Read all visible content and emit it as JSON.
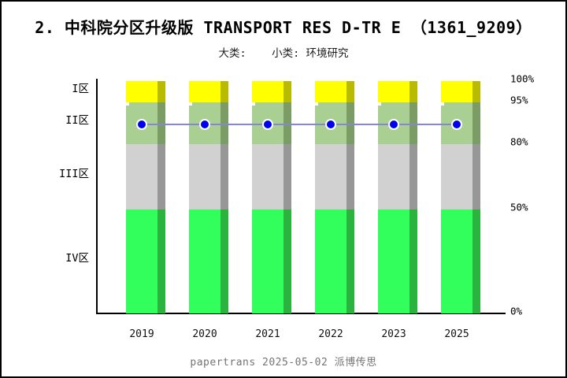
{
  "header": {
    "title": "2. 中科院分区升级版 TRANSPORT RES D-TR E （1361_9209）",
    "subtitle": "大类:    小类: 环境研究"
  },
  "footer": {
    "caption": "papertrans 2025-05-02 派博传思"
  },
  "chart_data": {
    "type": "bar",
    "stacked": true,
    "title": "2. 中科院分区升级版 TRANSPORT RES D-TR E （1361_9209）",
    "subtitle": "大类:    小类: 环境研究",
    "categories": [
      "2019",
      "2020",
      "2021",
      "2022",
      "2023",
      "2025"
    ],
    "zones": [
      {
        "label": "I区",
        "from": 95,
        "to": 100,
        "color": "#FFFF00",
        "shadow_color": "#B9BB00"
      },
      {
        "label": "II区",
        "from": 80,
        "to": 95,
        "color": "#AACF92",
        "shadow_color": "#7C9C66"
      },
      {
        "label": "III区",
        "from": 50,
        "to": 80,
        "color": "#D1D1D1",
        "shadow_color": "#979797"
      },
      {
        "label": "IV区",
        "from": 0,
        "to": 50,
        "color": "#33FF5C",
        "shadow_color": "#2AB33E"
      }
    ],
    "bar_stack_percent_per_year": {
      "I区": 5,
      "II区": 15,
      "III区": 30,
      "IV区": 50
    },
    "series": [
      {
        "name": "percentile-line",
        "type": "line",
        "values": [
          87,
          87,
          87,
          87,
          87,
          87
        ],
        "point_color": "#0000F0",
        "line_color": "#8585DC"
      }
    ],
    "yticks": [
      {
        "label": "100%",
        "value": 100
      },
      {
        "label": "95%",
        "value": 95
      },
      {
        "label": "80%",
        "value": 80
      },
      {
        "label": "50%",
        "value": 50
      },
      {
        "label": "0%",
        "value": 0
      }
    ],
    "ylim": [
      0,
      100
    ],
    "xlabel": "",
    "ylabel": "",
    "grid": false,
    "legend": "none",
    "axis_color": "#000000"
  }
}
